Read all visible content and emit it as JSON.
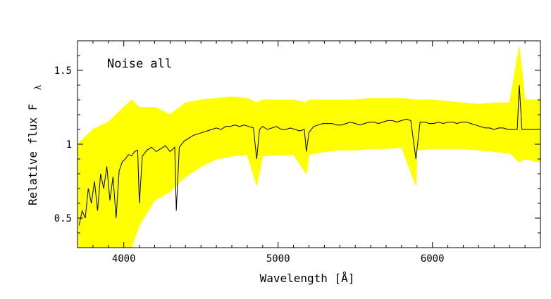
{
  "chart_data": {
    "type": "line",
    "title": "",
    "annotation": "Noise all",
    "xlabel": "Wavelength  [Å]",
    "ylabel": "Relative flux F",
    "ylabel_subscript": "λ",
    "xlim": [
      3700,
      6700
    ],
    "ylim": [
      0.3,
      1.7
    ],
    "xticks_major": [
      4000,
      5000,
      6000
    ],
    "xticks_minor_step": 100,
    "yticks_major": [
      0.5,
      1,
      1.5
    ],
    "ytick_labels": [
      "0.5",
      "1",
      "1.5"
    ],
    "yticks_minor_step": 0.1,
    "grid": false,
    "colors": {
      "noise_band": "#ffff00",
      "spectrum": "#000000"
    },
    "series": [
      {
        "role": "spectrum",
        "x": [
          3710,
          3730,
          3750,
          3770,
          3790,
          3810,
          3830,
          3850,
          3870,
          3890,
          3910,
          3930,
          3950,
          3970,
          3990,
          4010,
          4030,
          4050,
          4070,
          4090,
          4101,
          4120,
          4150,
          4180,
          4210,
          4240,
          4270,
          4300,
          4330,
          4340,
          4360,
          4390,
          4420,
          4450,
          4480,
          4510,
          4540,
          4570,
          4600,
          4630,
          4660,
          4690,
          4720,
          4750,
          4780,
          4810,
          4840,
          4861,
          4880,
          4900,
          4930,
          4960,
          4990,
          5020,
          5050,
          5080,
          5110,
          5140,
          5170,
          5183,
          5200,
          5230,
          5260,
          5290,
          5320,
          5350,
          5380,
          5410,
          5440,
          5470,
          5500,
          5530,
          5560,
          5590,
          5620,
          5650,
          5680,
          5710,
          5740,
          5770,
          5800,
          5830,
          5860,
          5893,
          5920,
          5950,
          5980,
          6010,
          6040,
          6070,
          6100,
          6130,
          6160,
          6190,
          6220,
          6250,
          6280,
          6310,
          6340,
          6370,
          6400,
          6430,
          6460,
          6490,
          6520,
          6550,
          6563,
          6580,
          6610,
          6640,
          6670,
          6700
        ],
        "y": [
          0.45,
          0.55,
          0.5,
          0.7,
          0.6,
          0.75,
          0.55,
          0.8,
          0.7,
          0.85,
          0.62,
          0.78,
          0.5,
          0.82,
          0.88,
          0.9,
          0.93,
          0.92,
          0.95,
          0.96,
          0.6,
          0.92,
          0.96,
          0.98,
          0.95,
          0.97,
          0.99,
          0.95,
          0.98,
          0.55,
          0.98,
          1.02,
          1.04,
          1.06,
          1.07,
          1.08,
          1.09,
          1.1,
          1.11,
          1.1,
          1.12,
          1.12,
          1.13,
          1.12,
          1.13,
          1.12,
          1.11,
          0.9,
          1.1,
          1.12,
          1.1,
          1.11,
          1.12,
          1.1,
          1.1,
          1.11,
          1.1,
          1.09,
          1.1,
          0.95,
          1.08,
          1.12,
          1.13,
          1.14,
          1.14,
          1.14,
          1.13,
          1.13,
          1.14,
          1.15,
          1.14,
          1.13,
          1.14,
          1.15,
          1.15,
          1.14,
          1.15,
          1.16,
          1.16,
          1.15,
          1.16,
          1.17,
          1.16,
          0.9,
          1.15,
          1.15,
          1.14,
          1.14,
          1.15,
          1.14,
          1.15,
          1.15,
          1.14,
          1.15,
          1.15,
          1.14,
          1.13,
          1.12,
          1.11,
          1.11,
          1.1,
          1.11,
          1.11,
          1.1,
          1.1,
          1.1,
          1.4,
          1.1,
          1.1,
          1.1,
          1.1,
          1.1
        ]
      },
      {
        "role": "noise_band",
        "x": [
          3700,
          3800,
          3900,
          4000,
          4050,
          4100,
          4200,
          4300,
          4400,
          4500,
          4600,
          4700,
          4800,
          4861,
          4900,
          5000,
          5100,
          5183,
          5200,
          5300,
          5400,
          5500,
          5600,
          5700,
          5800,
          5893,
          5900,
          6000,
          6100,
          6200,
          6300,
          6400,
          6500,
          6563,
          6600,
          6700
        ],
        "upper": [
          1.0,
          1.1,
          1.15,
          1.25,
          1.3,
          1.25,
          1.25,
          1.2,
          1.28,
          1.3,
          1.31,
          1.32,
          1.31,
          1.28,
          1.3,
          1.3,
          1.3,
          1.28,
          1.3,
          1.3,
          1.3,
          1.3,
          1.31,
          1.31,
          1.31,
          1.3,
          1.3,
          1.3,
          1.29,
          1.28,
          1.27,
          1.28,
          1.28,
          1.66,
          1.3,
          1.3
        ],
        "lower": [
          0.3,
          0.3,
          0.3,
          0.3,
          0.3,
          0.45,
          0.62,
          0.68,
          0.78,
          0.85,
          0.9,
          0.92,
          0.93,
          0.72,
          0.92,
          0.93,
          0.93,
          0.8,
          0.93,
          0.95,
          0.96,
          0.96,
          0.97,
          0.97,
          0.98,
          0.72,
          0.96,
          0.97,
          0.97,
          0.97,
          0.96,
          0.95,
          0.94,
          0.88,
          0.9,
          0.88
        ]
      }
    ]
  }
}
